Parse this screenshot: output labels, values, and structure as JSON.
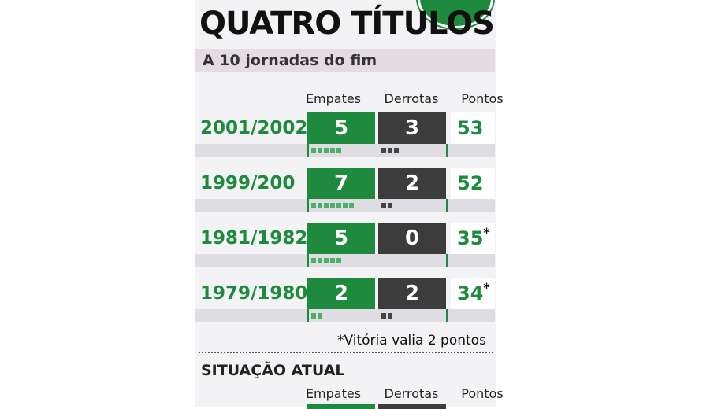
{
  "header": {
    "title": "QUATRO TÍTULOS",
    "subtitle": "A 10 jornadas do fim"
  },
  "columns": [
    "Empates",
    "Derrotas",
    "Pontos"
  ],
  "rows": [
    {
      "season": "2001/2002",
      "empates": 5,
      "derrotas": 3,
      "pontos": 53
    },
    {
      "season": "1999/200",
      "empates": 7,
      "derrotas": 2,
      "pontos": 52
    },
    {
      "season": "1981/1982",
      "empates": 5,
      "derrotas": 0,
      "pontos": 35,
      "note": "*"
    },
    {
      "season": "1979/1980",
      "empates": 2,
      "derrotas": 2,
      "pontos": 34,
      "note": "*"
    }
  ],
  "footnote": "*Vitória valia 2 pontos",
  "section": {
    "title": "SITUAÇÃO ATUAL",
    "columns": [
      "Empates",
      "Derrotas",
      "Pontos"
    ]
  }
}
